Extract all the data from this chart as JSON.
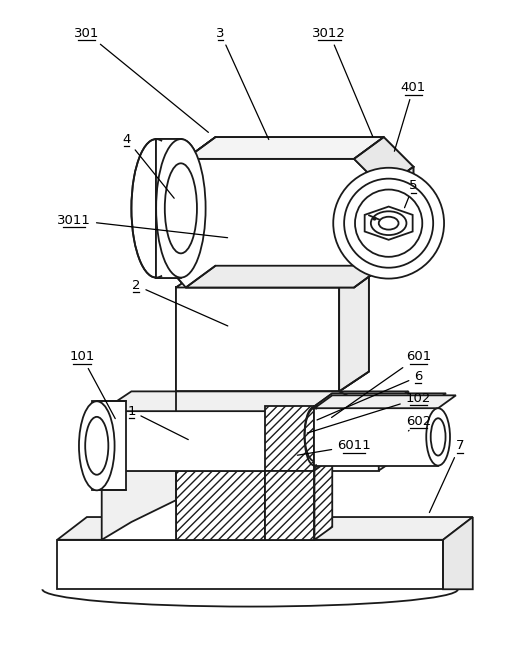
{
  "background_color": "#ffffff",
  "line_color": "#1a1a1a",
  "fig_width": 5.25,
  "fig_height": 6.67,
  "dpi": 100
}
